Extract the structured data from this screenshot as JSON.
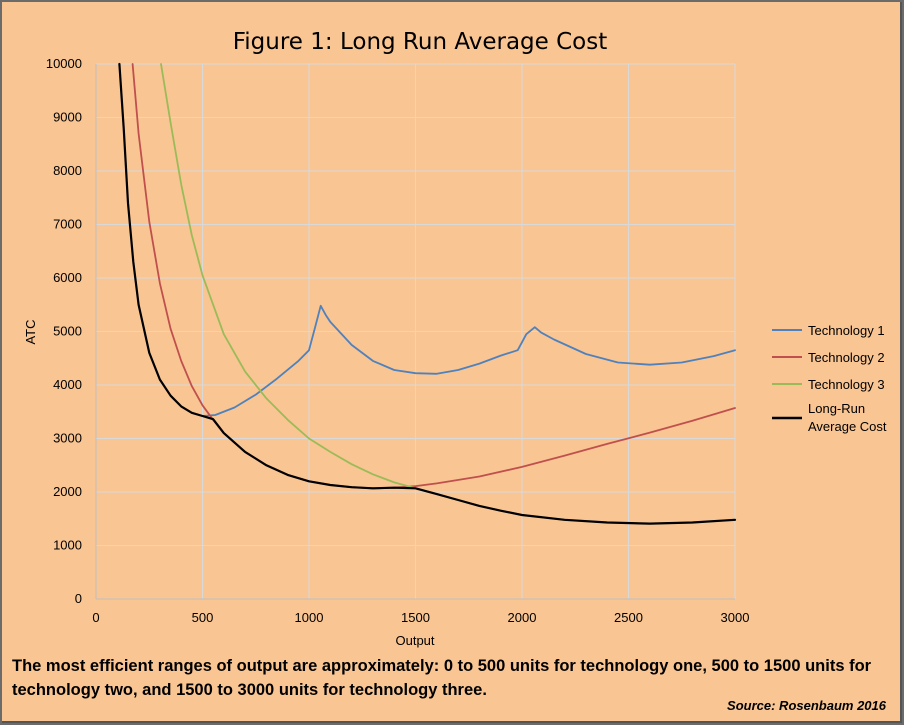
{
  "chart_data": {
    "type": "line",
    "title": "Figure 1: Long Run Average Cost",
    "xlabel": "Output",
    "ylabel": "ATC",
    "xlim": [
      0,
      3000
    ],
    "ylim": [
      0,
      10000
    ],
    "x_ticks": [
      0,
      500,
      1000,
      1500,
      2000,
      2500,
      3000
    ],
    "y_ticks": [
      0,
      1000,
      2000,
      3000,
      4000,
      5000,
      6000,
      7000,
      8000,
      9000,
      10000
    ],
    "grid": true,
    "legend_position": "right",
    "series": [
      {
        "name": "Technology 1",
        "color": "#4f81bd",
        "points": [
          [
            500,
            3420
          ],
          [
            560,
            3440
          ],
          [
            650,
            3580
          ],
          [
            750,
            3820
          ],
          [
            850,
            4120
          ],
          [
            950,
            4450
          ],
          [
            1000,
            4650
          ],
          [
            1030,
            5100
          ],
          [
            1055,
            5480
          ],
          [
            1080,
            5300
          ],
          [
            1100,
            5180
          ],
          [
            1200,
            4750
          ],
          [
            1300,
            4450
          ],
          [
            1400,
            4280
          ],
          [
            1500,
            4220
          ],
          [
            1600,
            4210
          ],
          [
            1700,
            4280
          ],
          [
            1800,
            4400
          ],
          [
            1900,
            4550
          ],
          [
            1980,
            4650
          ],
          [
            2020,
            4950
          ],
          [
            2060,
            5080
          ],
          [
            2090,
            4980
          ],
          [
            2150,
            4850
          ],
          [
            2300,
            4580
          ],
          [
            2450,
            4420
          ],
          [
            2600,
            4380
          ],
          [
            2750,
            4420
          ],
          [
            2900,
            4540
          ],
          [
            3000,
            4650
          ]
        ]
      },
      {
        "name": "Technology 2",
        "color": "#c0504d",
        "points": [
          [
            172,
            10000
          ],
          [
            200,
            8700
          ],
          [
            250,
            7050
          ],
          [
            300,
            5900
          ],
          [
            350,
            5050
          ],
          [
            400,
            4450
          ],
          [
            450,
            3980
          ],
          [
            500,
            3620
          ],
          [
            550,
            3350
          ],
          [
            600,
            3100
          ],
          [
            700,
            2750
          ],
          [
            800,
            2500
          ],
          [
            900,
            2320
          ],
          [
            1000,
            2200
          ],
          [
            1100,
            2130
          ],
          [
            1200,
            2090
          ],
          [
            1300,
            2070
          ],
          [
            1400,
            2080
          ],
          [
            1500,
            2110
          ],
          [
            1600,
            2160
          ],
          [
            1800,
            2290
          ],
          [
            2000,
            2470
          ],
          [
            2200,
            2680
          ],
          [
            2400,
            2900
          ],
          [
            2600,
            3110
          ],
          [
            2800,
            3330
          ],
          [
            3000,
            3570
          ]
        ]
      },
      {
        "name": "Technology 3",
        "color": "#9bbb59",
        "points": [
          [
            305,
            10000
          ],
          [
            350,
            8900
          ],
          [
            400,
            7750
          ],
          [
            450,
            6800
          ],
          [
            500,
            6050
          ],
          [
            600,
            4950
          ],
          [
            700,
            4250
          ],
          [
            800,
            3750
          ],
          [
            900,
            3350
          ],
          [
            1000,
            3000
          ],
          [
            1100,
            2750
          ],
          [
            1200,
            2520
          ],
          [
            1300,
            2330
          ],
          [
            1400,
            2180
          ],
          [
            1500,
            2070
          ],
          [
            1600,
            1960
          ],
          [
            1700,
            1850
          ],
          [
            1800,
            1740
          ],
          [
            1900,
            1650
          ],
          [
            2000,
            1570
          ],
          [
            2200,
            1480
          ],
          [
            2400,
            1430
          ],
          [
            2600,
            1410
          ],
          [
            2800,
            1430
          ],
          [
            3000,
            1480
          ]
        ]
      },
      {
        "name": "Long-Run Average Cost",
        "color": "#000000",
        "points": [
          [
            110,
            10000
          ],
          [
            130,
            8800
          ],
          [
            150,
            7400
          ],
          [
            175,
            6300
          ],
          [
            200,
            5500
          ],
          [
            250,
            4600
          ],
          [
            300,
            4100
          ],
          [
            350,
            3800
          ],
          [
            400,
            3600
          ],
          [
            450,
            3480
          ],
          [
            500,
            3420
          ],
          [
            550,
            3360
          ],
          [
            600,
            3100
          ],
          [
            700,
            2750
          ],
          [
            800,
            2500
          ],
          [
            900,
            2320
          ],
          [
            1000,
            2200
          ],
          [
            1100,
            2130
          ],
          [
            1200,
            2090
          ],
          [
            1300,
            2070
          ],
          [
            1400,
            2080
          ],
          [
            1500,
            2070
          ],
          [
            1600,
            1960
          ],
          [
            1700,
            1850
          ],
          [
            1800,
            1740
          ],
          [
            1900,
            1650
          ],
          [
            2000,
            1570
          ],
          [
            2200,
            1480
          ],
          [
            2400,
            1430
          ],
          [
            2600,
            1410
          ],
          [
            2800,
            1430
          ],
          [
            3000,
            1480
          ]
        ]
      }
    ]
  },
  "legend": {
    "tech1": "Technology 1",
    "tech2": "Technology 2",
    "tech3": "Technology 3",
    "lrac_line1": "Long-Run",
    "lrac_line2": "Average Cost"
  },
  "caption": "The most efficient ranges of output are approximately: 0 to 500 units for technology one, 500 to 1500 units for technology two, and 1500 to 3000 units for technology three.",
  "source": "Source: Rosenbaum 2016"
}
